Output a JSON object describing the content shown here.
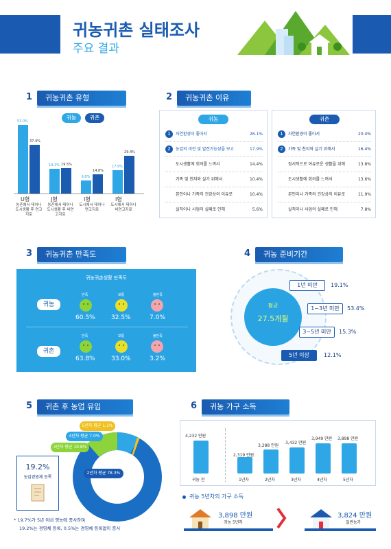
{
  "header": {
    "title": "귀농귀촌 실태조사",
    "subtitle": "주요 결과"
  },
  "sections": {
    "s1": {
      "num": "1",
      "title": "귀농귀촌 유형"
    },
    "s2": {
      "num": "2",
      "title": "귀농귀촌 이유"
    },
    "s3": {
      "num": "3",
      "title": "귀농귀촌 만족도"
    },
    "s4": {
      "num": "4",
      "title": "귀농 준비기간"
    },
    "s5": {
      "num": "5",
      "title": "귀촌 후 농업 유입"
    },
    "s6": {
      "num": "6",
      "title": "귀농 가구 소득"
    }
  },
  "types": {
    "legend": [
      "귀농",
      "귀촌"
    ],
    "groups": [
      {
        "label": "U형",
        "desc": "농촌에서 태어나 도시생활 후 연고지로",
        "gwinong": 53.0,
        "gwichon": 37.4,
        "gwinong_label": "53.0%",
        "gwichon_label": "37.4%"
      },
      {
        "label": "J형",
        "desc": "농촌에서 태어나 도시생활 후 비연고지로",
        "gwinong": 19.2,
        "gwichon": 19.5,
        "gwinong_label": "19.2%",
        "gwichon_label": "19.5%"
      },
      {
        "label": "I형",
        "desc": "도시에서 태어나 연고지로",
        "gwinong": 9.8,
        "gwichon": 14.8,
        "gwinong_label": "9.8%",
        "gwichon_label": "14.8%"
      },
      {
        "label": "I형",
        "desc": "도시에서 태어나 비연고지로",
        "gwinong": 17.9,
        "gwichon": 29.4,
        "gwinong_label": "17.9%",
        "gwichon_label": "29.4%"
      }
    ]
  },
  "reasons": {
    "gwinong": {
      "title": "귀농",
      "rows": [
        {
          "n": "1",
          "text": "자연환경이 좋아서",
          "value": "26.1%"
        },
        {
          "n": "2",
          "text": "농업의 비전 및 발전가능성을 보고",
          "value": "17.9%"
        },
        {
          "n": "",
          "text": "도시생활에 회의를 느껴서",
          "value": "14.4%"
        },
        {
          "n": "",
          "text": "가족 및 친지와 살기 위해서",
          "value": "10.4%"
        },
        {
          "n": "",
          "text": "본인이나 가족의 건강상의 이유로",
          "value": "10.4%"
        },
        {
          "n": "",
          "text": "실직이나 사업의 실패로 인해",
          "value": "5.6%"
        }
      ]
    },
    "gwichon": {
      "title": "귀촌",
      "rows": [
        {
          "n": "1",
          "text": "자연환경이 좋아서",
          "value": "20.4%"
        },
        {
          "n": "2",
          "text": "가족 및 친지와 살기 위해서",
          "value": "16.4%"
        },
        {
          "n": "",
          "text": "정서적으로 여유로운 생활을 위해",
          "value": "13.8%"
        },
        {
          "n": "",
          "text": "도시생활에 회의를 느껴서",
          "value": "13.6%"
        },
        {
          "n": "",
          "text": "본인이나 가족의 건강상의 이유로",
          "value": "11.9%"
        },
        {
          "n": "",
          "text": "실직이나 사업의 실패로 인해",
          "value": "7.8%"
        }
      ]
    }
  },
  "satisfaction": {
    "title": "귀농귀촌생활 만족도",
    "labels": [
      "만족",
      "보통",
      "불만족"
    ],
    "rows": [
      {
        "group": "귀농",
        "values": [
          "60.5%",
          "32.5%",
          "7.0%"
        ]
      },
      {
        "group": "귀촌",
        "values": [
          "63.8%",
          "33.0%",
          "3.2%"
        ]
      }
    ]
  },
  "prep": {
    "center_label": "평균",
    "center_value": "27.5개월",
    "items": [
      {
        "label": "1년 미만",
        "value": "19.1%"
      },
      {
        "label": "1~3년 미만",
        "value": "53.4%"
      },
      {
        "label": "3~5년 미만",
        "value": "15.3%"
      },
      {
        "label": "5년 이상",
        "value": "12.1%"
      }
    ]
  },
  "inflow": {
    "box_value": "19.2%",
    "box_label": "농업경영체 등록",
    "slices": [
      {
        "label": "2년차 평균 78.3%",
        "value": 78.3
      },
      {
        "label": "3년차 평균 10.8%",
        "value": 10.8
      },
      {
        "label": "4년차 평균 7.0%",
        "value": 7.0
      },
      {
        "label": "5년차 평균 1.1%",
        "value": 1.1
      }
    ],
    "note1": "* 19.7%가 5년 이내 영농에 종사하며",
    "note2": "19.2%는 경영체 등록, 0.5%는 경영체 등록없이 종사"
  },
  "income": {
    "bars": [
      {
        "x": "귀농 전",
        "value": 4232,
        "label": "4,232 만원"
      },
      {
        "x": "1년차",
        "value": 2319,
        "label": "2,319 만원"
      },
      {
        "x": "2년차",
        "value": 3288,
        "label": "3,288 만원"
      },
      {
        "x": "3년차",
        "value": 3432,
        "label": "3,432 만원"
      },
      {
        "x": "4년차",
        "value": 3949,
        "label": "3,949 만원"
      },
      {
        "x": "5년차",
        "value": 3898,
        "label": "3,898 만원"
      }
    ],
    "compare_title": "귀농 5년차의 가구 소득",
    "left_value": "3,898 만원",
    "left_label": "귀농 5년차",
    "right_value": "3,824 만원",
    "right_label": "일반농가"
  },
  "colors": {
    "primary": "#1a5bb1",
    "light": "#2fa7e6",
    "panel": "#2aa3e3"
  }
}
